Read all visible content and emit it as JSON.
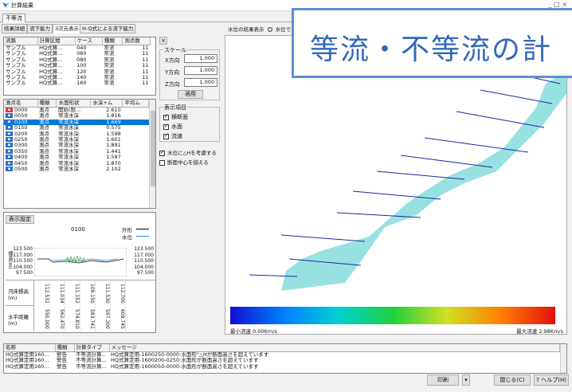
{
  "app": {
    "title": "計算結果",
    "window_controls": "_  □  ×"
  },
  "top_tab": "不等流",
  "subtabs": [
    "結果詳細",
    "流下能力",
    "3次元表示",
    "H-Q式による流下能力"
  ],
  "water_display": {
    "label": "水位の結果表示",
    "option": "水位で"
  },
  "overlay_title": "等流・不等流の計",
  "case_table": {
    "headers": [
      "流路",
      "計算区間",
      "ケース",
      "種類",
      "測点数"
    ],
    "rows": [
      [
        "サンプル",
        "HQ式算...",
        "040",
        "常流",
        "11"
      ],
      [
        "サンプル",
        "HQ式算...",
        "060",
        "常流",
        "11"
      ],
      [
        "サンプル",
        "HQ式算...",
        "080",
        "常流",
        "11"
      ],
      [
        "サンプル",
        "HQ式算...",
        "100",
        "常流",
        "11"
      ],
      [
        "サンプル",
        "HQ式算...",
        "120",
        "常流",
        "11"
      ],
      [
        "サンプル",
        "HQ式算...",
        "140",
        "常流",
        "11"
      ],
      [
        "サンプル",
        "HQ式算...",
        "160",
        "常流",
        "11"
      ]
    ]
  },
  "point_table": {
    "headers": [
      "測点名",
      "種類",
      "水面形状",
      "水深+ム",
      "平均ム"
    ],
    "rows": [
      {
        "name": "0000",
        "kind": "測点",
        "shape": "開始(限...",
        "value": "2.610",
        "icon": "red"
      },
      {
        "name": "0050",
        "kind": "測点",
        "shape": "常流水深",
        "value": "1.816",
        "icon": "blue"
      },
      {
        "name": "0100",
        "kind": "測点",
        "shape": "常流水深",
        "value": "1.669",
        "icon": "blue"
      },
      {
        "name": "0150",
        "kind": "測点",
        "shape": "常流水深",
        "value": "0.575",
        "icon": "blue"
      },
      {
        "name": "0200",
        "kind": "測点",
        "shape": "常流水深",
        "value": "1.598",
        "icon": "blue"
      },
      {
        "name": "0250",
        "kind": "測点",
        "shape": "常流水深",
        "value": "1.601",
        "icon": "blue"
      },
      {
        "name": "0300",
        "kind": "測点",
        "shape": "常流水深",
        "value": "1.891",
        "icon": "blue"
      },
      {
        "name": "0350",
        "kind": "測点",
        "shape": "常流水深",
        "value": "1.441",
        "icon": "blue"
      },
      {
        "name": "0400",
        "kind": "測点",
        "shape": "常流水深",
        "value": "1.597",
        "icon": "blue"
      },
      {
        "name": "0450",
        "kind": "測点",
        "shape": "常流水深",
        "value": "1.870",
        "icon": "blue"
      },
      {
        "name": "0500",
        "kind": "測点",
        "shape": "常流水深",
        "value": "2.102",
        "icon": "blue"
      }
    ],
    "selected_index": 2
  },
  "scale": {
    "group_label": "スケール",
    "x_label": "X方向",
    "x_value": "1.000",
    "y_label": "Y方向",
    "y_value": "1.000",
    "z_label": "Z方向",
    "z_value": "1.000",
    "apply": "適用",
    "close": "×"
  },
  "display_items": {
    "group_label": "表示項目",
    "items": [
      {
        "label": "横断面",
        "checked": true
      },
      {
        "label": "水面",
        "checked": true
      },
      {
        "label": "流速",
        "checked": true
      }
    ]
  },
  "options": [
    {
      "label": "水位に△Hを考慮する",
      "checked": true
    },
    {
      "label": "断面中心を揃える",
      "checked": false
    }
  ],
  "section": {
    "settings_button": "表示設定",
    "station": "0100",
    "legend_outer": "外形",
    "legend_water": "水位",
    "ylabel": "標高(m)",
    "left_ticks": [
      "123.500",
      "117.000",
      "110.500",
      "104.000",
      "97.500"
    ],
    "right_ticks": [
      "123.500",
      "117.000",
      "110.500",
      "104.000",
      "97.500"
    ],
    "row1_label": "河床標高(m)",
    "row1_values": [
      "112.532",
      "111.034",
      "111.152",
      "109.150",
      "111.530",
      "112.700"
    ],
    "row2_label": "水平距離(m)",
    "row2_values": [
      "550.000",
      "562.470",
      "574.810",
      "583.741",
      "597.200",
      "609.745"
    ]
  },
  "velocity_legend": {
    "min": "最小流速 0.00Km/s",
    "max": "最大流速 2.98Km/s",
    "colors": [
      "#1010d0",
      "#0080ff",
      "#00d0d0",
      "#20d040",
      "#d0e020",
      "#ff8000",
      "#e01010"
    ]
  },
  "messages": {
    "headers": [
      "名称",
      "種類",
      "計算タイプ",
      "メッセージ"
    ],
    "rows": [
      [
        "HQ式算定用160...",
        "警告",
        "不等流計算...",
        "HQ式算定用-1600250-0000:水面形\"△Hが断面高さを超えています"
      ],
      [
        "HQ式算定用160...",
        "警告",
        "不等流計算...",
        "HQ式算定用-1600200-0250:水面形が断面高さを超えています"
      ],
      [
        "HQ式算定用160...",
        "警告",
        "不等流計算...",
        "HQ式算定用-1600050-0000:水面形が断面高さを超えています"
      ]
    ]
  },
  "footer": {
    "print": "印刷",
    "close": "閉じる(C)",
    "help": "ヘルプ(H)"
  }
}
